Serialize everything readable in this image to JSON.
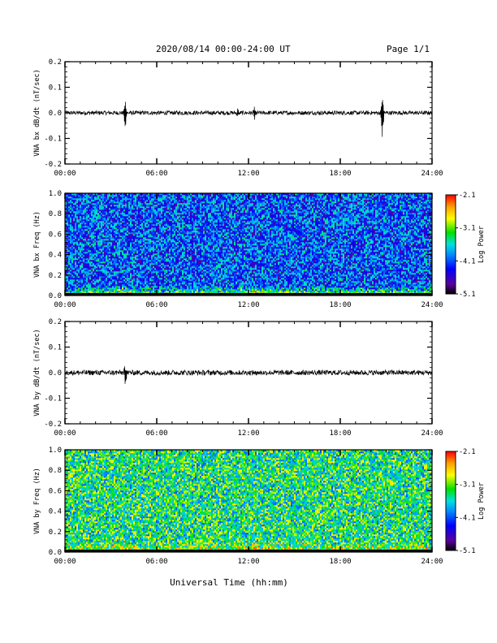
{
  "header": {
    "title": "2020/08/14  00:00-24:00 UT",
    "page": "Page 1/1"
  },
  "xlabel": "Universal Time (hh:mm)",
  "colors": {
    "trace": "#000000",
    "colormap": [
      "#000000",
      "#5a00a0",
      "#0000ff",
      "#0090ff",
      "#00e0e0",
      "#00e000",
      "#ffff00",
      "#ffa000",
      "#ff0000"
    ]
  },
  "chart_data": [
    {
      "type": "line",
      "ylabel": "VNA bx dB/dt (nT/sec)",
      "xlim": [
        0,
        24
      ],
      "ylim": [
        -0.2,
        0.2
      ],
      "x_ticks": [
        "00:00",
        "06:00",
        "12:00",
        "18:00",
        "24:00"
      ],
      "y_ticks": [
        "-0.2",
        "-0.1",
        "0.0",
        "0.1",
        "0.2"
      ],
      "baseline": 0.0,
      "noise_amplitude": 0.008,
      "events": [
        {
          "time": 3.95,
          "max": 0.05,
          "min": -0.07
        },
        {
          "time": 11.3,
          "max": 0.015,
          "min": -0.02
        },
        {
          "time": 12.4,
          "max": 0.02,
          "min": -0.02
        },
        {
          "time": 20.75,
          "max": 0.07,
          "min": -0.11
        }
      ]
    },
    {
      "type": "heatmap",
      "ylabel": "VNA bx Freq (Hz)",
      "xlim": [
        0,
        24
      ],
      "ylim": [
        0.0,
        1.0
      ],
      "x_ticks": [
        "00:00",
        "06:00",
        "12:00",
        "18:00",
        "24:00"
      ],
      "y_ticks": [
        "0.0",
        "0.2",
        "0.4",
        "0.6",
        "0.8",
        "1.0"
      ],
      "colorbar": {
        "label": "Log Power",
        "ticks": [
          "-2.1",
          "-3.1",
          "-4.1",
          "-5.1"
        ],
        "range": [
          -5.1,
          -2.1
        ]
      },
      "mean_log_power": -4.1,
      "low_freq_enhancement": -2.6
    },
    {
      "type": "line",
      "ylabel": "VNA by dB/dt (nT/sec)",
      "xlim": [
        0,
        24
      ],
      "ylim": [
        -0.2,
        0.2
      ],
      "x_ticks": [
        "00:00",
        "06:00",
        "12:00",
        "18:00",
        "24:00"
      ],
      "y_ticks": [
        "-0.2",
        "-0.1",
        "0.0",
        "0.1",
        "0.2"
      ],
      "baseline": 0.0,
      "noise_amplitude": 0.01,
      "events": [
        {
          "time": 3.95,
          "max": 0.03,
          "min": -0.05
        },
        {
          "time": 12.5,
          "max": 0.015,
          "min": -0.02
        }
      ]
    },
    {
      "type": "heatmap",
      "ylabel": "VNA by Freq (Hz)",
      "xlim": [
        0,
        24
      ],
      "ylim": [
        0.0,
        1.0
      ],
      "x_ticks": [
        "00:00",
        "06:00",
        "12:00",
        "18:00",
        "24:00"
      ],
      "y_ticks": [
        "0.0",
        "0.2",
        "0.4",
        "0.6",
        "0.8",
        "1.0"
      ],
      "colorbar": {
        "label": "Log Power",
        "ticks": [
          "-2.1",
          "-3.1",
          "-4.1",
          "-5.1"
        ],
        "range": [
          -5.1,
          -2.1
        ]
      },
      "mean_log_power": -3.4,
      "low_freq_enhancement": -2.6
    }
  ]
}
